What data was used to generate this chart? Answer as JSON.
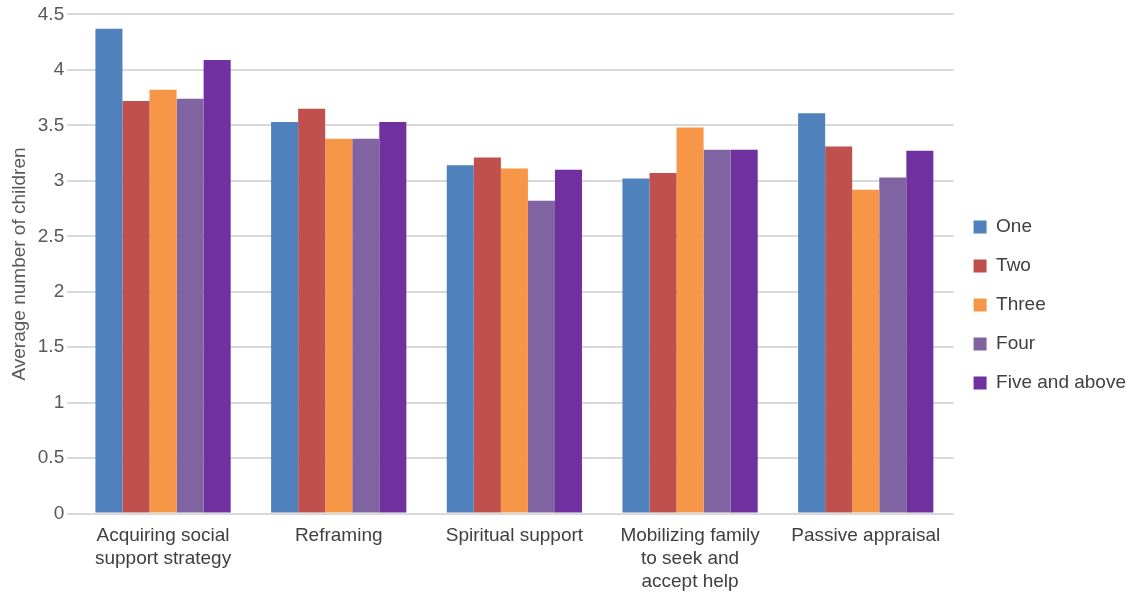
{
  "chart_data": {
    "type": "bar",
    "ylabel": "Average number of children",
    "categories": [
      "Acquiring social support strategy",
      "Reframing",
      "Spiritual support",
      "Mobilizing family to seek and accept help",
      "Passive appraisal"
    ],
    "series": [
      {
        "name": "One",
        "color": "#4f81bd",
        "values": [
          4.37,
          3.53,
          3.14,
          3.02,
          3.61
        ]
      },
      {
        "name": "Two",
        "color": "#c0504d",
        "values": [
          3.72,
          3.65,
          3.21,
          3.07,
          3.31
        ]
      },
      {
        "name": "Three",
        "color": "#f79646",
        "values": [
          3.82,
          3.38,
          3.11,
          3.48,
          2.92
        ]
      },
      {
        "name": "Four",
        "color": "#8064a2",
        "values": [
          3.74,
          3.38,
          2.82,
          3.28,
          3.03
        ]
      },
      {
        "name": "Five and above",
        "color": "#7030a0",
        "values": [
          4.09,
          3.53,
          3.1,
          3.28,
          3.27
        ]
      }
    ],
    "ylim": [
      0,
      4.5
    ],
    "yticks": [
      0,
      0.5,
      1,
      1.5,
      2,
      2.5,
      3,
      3.5,
      4,
      4.5
    ],
    "grid": "y",
    "legend": "right"
  }
}
